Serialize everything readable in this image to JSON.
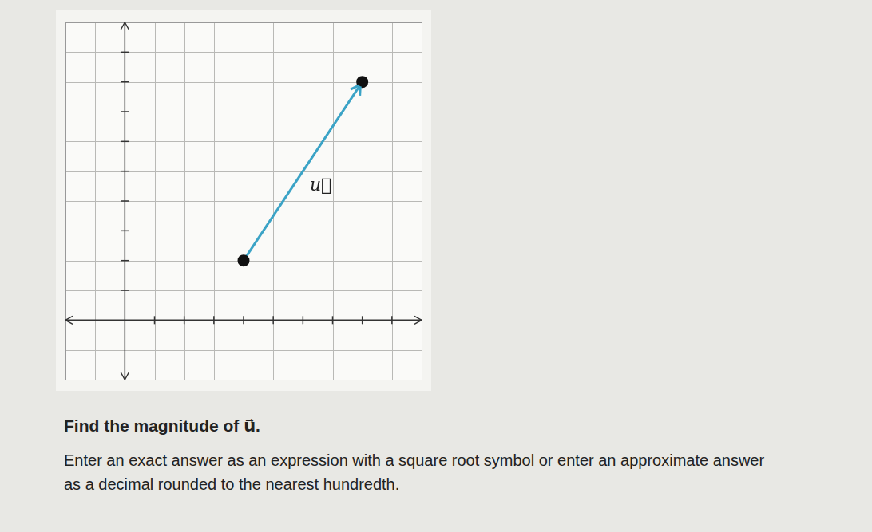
{
  "chart_data": {
    "type": "vector",
    "x": [
      4,
      8
    ],
    "values": [
      2,
      8
    ],
    "color": "#3ba3c6",
    "marker": "circle",
    "annotations": [
      {
        "text": "u⃗",
        "x": 6.6,
        "y": 4.5
      }
    ],
    "xlim": [
      -2,
      10
    ],
    "ylim": [
      -2,
      10
    ],
    "xticks": [
      1,
      2,
      3,
      4,
      5,
      6,
      7,
      8,
      9
    ],
    "yticks": [
      1,
      2,
      3,
      4,
      5,
      6,
      7,
      8,
      9
    ],
    "grid": true
  },
  "question": {
    "prompt": "Find the magnitude of u⃗.",
    "instructions": "Enter an exact answer as an expression with a square root symbol or enter an approximate answer as a decimal rounded to the nearest hundredth."
  }
}
